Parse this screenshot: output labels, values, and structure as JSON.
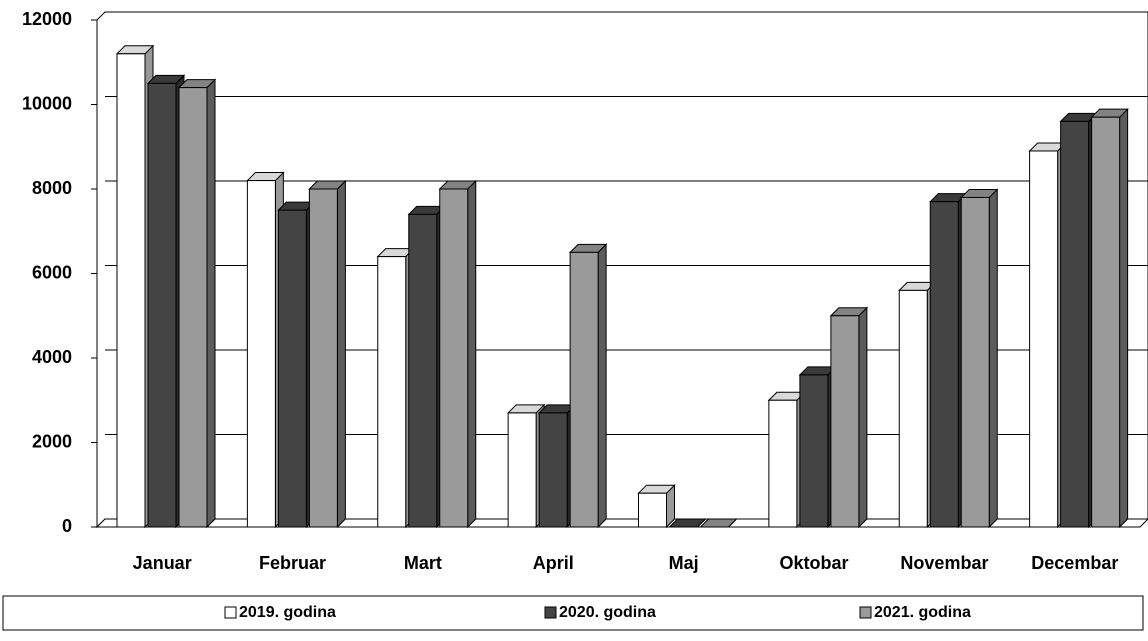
{
  "chart_data": {
    "type": "bar3d",
    "categories": [
      "Januar",
      "Februar",
      "Mart",
      "April",
      "Maj",
      "Oktobar",
      "Novembar",
      "Decembar"
    ],
    "series": [
      {
        "name": "2019. godina",
        "color": "#ffffff",
        "values": [
          11200,
          8200,
          6400,
          2700,
          800,
          3000,
          5600,
          8900
        ]
      },
      {
        "name": "2020. godina",
        "color": "#444444",
        "values": [
          10500,
          7500,
          7400,
          2700,
          0,
          3600,
          7700,
          9600
        ]
      },
      {
        "name": "2021. godina",
        "color": "#9a9a9a",
        "values": [
          10400,
          8000,
          8000,
          6500,
          0,
          5000,
          7800,
          9700
        ]
      }
    ],
    "ylim": [
      0,
      12000
    ],
    "yticks": [
      0,
      2000,
      4000,
      6000,
      8000,
      10000,
      12000
    ],
    "grid": true,
    "legend": "bottom"
  }
}
